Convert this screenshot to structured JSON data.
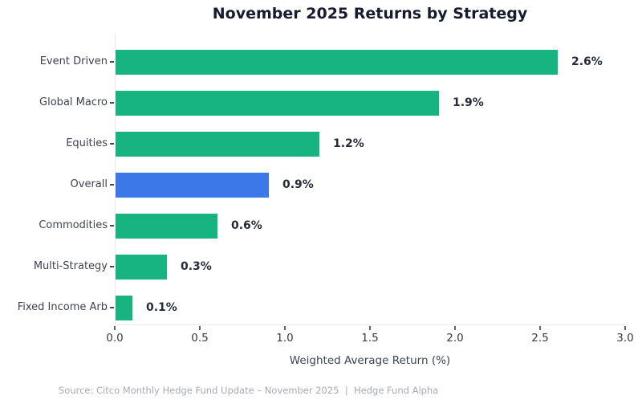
{
  "chart_data": {
    "type": "bar",
    "orientation": "horizontal",
    "title": "November 2025 Returns by Strategy",
    "xlabel": "Weighted Average Return (%)",
    "categories": [
      "Event Driven",
      "Global Macro",
      "Equities",
      "Overall",
      "Commodities",
      "Multi-Strategy",
      "Fixed Income Arb"
    ],
    "values": [
      2.6,
      1.9,
      1.2,
      0.9,
      0.6,
      0.3,
      0.1
    ],
    "value_labels": [
      "2.6%",
      "1.9%",
      "1.2%",
      "0.9%",
      "0.6%",
      "0.3%",
      "0.1%"
    ],
    "highlight_category": "Overall",
    "xlim": [
      0,
      3.0
    ],
    "x_tick_values": [
      0,
      0.5,
      1.0,
      1.5,
      2.0,
      2.5,
      3.0
    ],
    "x_tick_labels": [
      "0.0",
      "0.5",
      "1.0",
      "1.5",
      "2.0",
      "2.5",
      "3.0"
    ],
    "grid": "off",
    "legend": "none",
    "colors": {
      "bar": "#17b381",
      "highlight_bar": "#3d78e8",
      "title_text": "#161b2e",
      "axis_text": "#3d4351",
      "value_text": "#252b3a",
      "spine": "#e7e8ec",
      "source_text": "#a5aab5"
    }
  },
  "footer": {
    "source": "Source: Citco Monthly Hedge Fund Update – November 2025  |  Hedge Fund Alpha"
  }
}
